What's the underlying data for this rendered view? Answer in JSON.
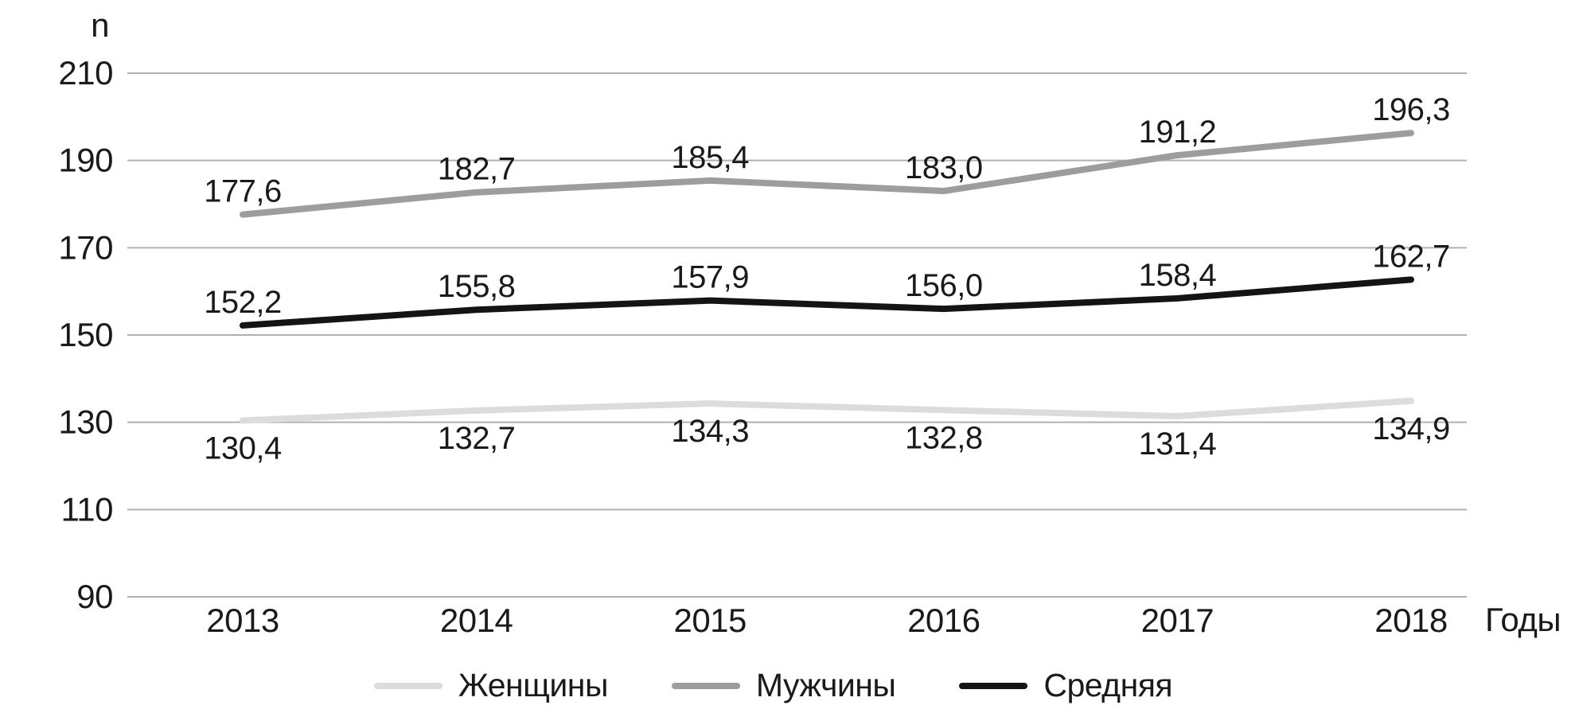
{
  "chart_data": {
    "type": "line",
    "title": "",
    "ylabel": "n",
    "xlabel": "Годы",
    "categories": [
      "2013",
      "2014",
      "2015",
      "2016",
      "2017",
      "2018"
    ],
    "yticks": [
      210,
      190,
      170,
      150,
      130,
      110,
      90
    ],
    "ylim": [
      90,
      210
    ],
    "grid": true,
    "legend_position": "bottom",
    "grid_color": "#b0b0b0",
    "text_color": "#1a1a1a",
    "series": [
      {
        "name": "Женщины",
        "color": "#dcdcdc",
        "values": [
          130.4,
          132.7,
          134.3,
          132.8,
          131.4,
          134.9
        ],
        "labels": [
          "130,4",
          "132,7",
          "134,3",
          "132,8",
          "131,4",
          "134,9"
        ],
        "label_position": "below"
      },
      {
        "name": "Мужчины",
        "color": "#9d9d9d",
        "values": [
          177.6,
          182.7,
          185.4,
          183.0,
          191.2,
          196.3
        ],
        "labels": [
          "177,6",
          "182,7",
          "185,4",
          "183,0",
          "191,2",
          "196,3"
        ],
        "label_position": "above"
      },
      {
        "name": "Средняя",
        "color": "#141414",
        "values": [
          152.2,
          155.8,
          157.9,
          156.0,
          158.4,
          162.7
        ],
        "labels": [
          "152,2",
          "155,8",
          "157,9",
          "156,0",
          "158,4",
          "162,7"
        ],
        "label_position": "above"
      }
    ]
  }
}
